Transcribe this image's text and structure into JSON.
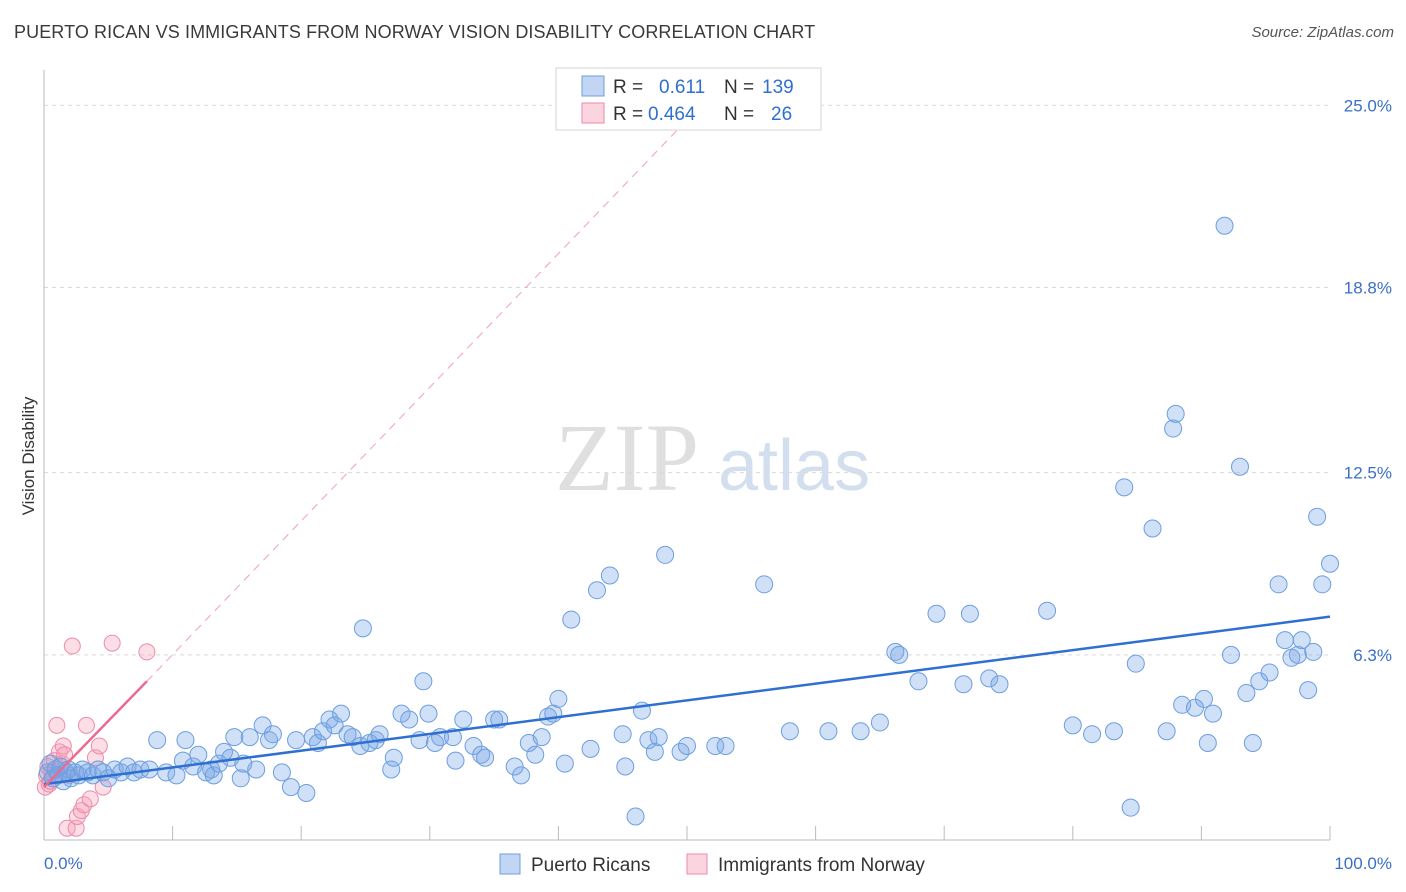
{
  "header": {
    "title": "PUERTO RICAN VS IMMIGRANTS FROM NORWAY VISION DISABILITY CORRELATION CHART",
    "source": "Source: ZipAtlas.com"
  },
  "watermark": {
    "zip": "ZIP",
    "atlas": "atlas"
  },
  "colors": {
    "blue": "#6d9ee0",
    "blue_fill": "rgba(120,165,230,0.35)",
    "blue_line": "#2f6fd0",
    "pink": "#ee8aa8",
    "pink_fill": "rgba(245,160,185,0.35)",
    "pink_line": "#e96b92",
    "tick_text": "#3a6fc4",
    "grid": "#d9d9d9"
  },
  "legend": {
    "rows": [
      {
        "r_label": "R =",
        "r_value": "0.611",
        "n_label": "N =",
        "n_value": "139"
      },
      {
        "r_label": "R =",
        "r_value": "0.464",
        "n_label": "N =",
        "n_value": "26"
      }
    ]
  },
  "chart_data": {
    "type": "scatter",
    "title": "PUERTO RICAN VS IMMIGRANTS FROM NORWAY VISION DISABILITY CORRELATION CHART",
    "xlabel": "",
    "ylabel": "Vision Disability",
    "xlim": [
      0,
      100
    ],
    "ylim": [
      0,
      26.2
    ],
    "x_tick_labels": [
      "0.0%",
      "100.0%"
    ],
    "y_ticks": [
      6.3,
      12.5,
      18.8,
      25.0
    ],
    "y_tick_labels": [
      "6.3%",
      "12.5%",
      "18.8%",
      "25.0%"
    ],
    "grid": true,
    "legend_position": "top-center",
    "series": [
      {
        "name": "Puerto Ricans",
        "R": 0.611,
        "N": 139,
        "trend": {
          "x": [
            0,
            100
          ],
          "y": [
            1.9,
            7.6
          ]
        },
        "points": [
          [
            0.3,
            2.3
          ],
          [
            0.5,
            2.6
          ],
          [
            0.7,
            2.1
          ],
          [
            0.9,
            2.4
          ],
          [
            1.1,
            2.2
          ],
          [
            1.3,
            2.5
          ],
          [
            1.5,
            2.0
          ],
          [
            1.7,
            2.3
          ],
          [
            1.9,
            2.4
          ],
          [
            2.1,
            2.1
          ],
          [
            2.4,
            2.3
          ],
          [
            2.7,
            2.2
          ],
          [
            3.0,
            2.4
          ],
          [
            3.4,
            2.3
          ],
          [
            3.8,
            2.2
          ],
          [
            4.2,
            2.4
          ],
          [
            4.6,
            2.3
          ],
          [
            5.0,
            2.1
          ],
          [
            5.5,
            2.4
          ],
          [
            6.0,
            2.3
          ],
          [
            6.5,
            2.5
          ],
          [
            7.0,
            2.3
          ],
          [
            7.5,
            2.4
          ],
          [
            8.2,
            2.4
          ],
          [
            8.8,
            3.4
          ],
          [
            9.5,
            2.3
          ],
          [
            10.3,
            2.2
          ],
          [
            10.8,
            2.7
          ],
          [
            11.0,
            3.4
          ],
          [
            11.6,
            2.5
          ],
          [
            12.0,
            2.9
          ],
          [
            12.6,
            2.3
          ],
          [
            13.0,
            2.4
          ],
          [
            13.2,
            2.2
          ],
          [
            13.6,
            2.6
          ],
          [
            14.0,
            3.0
          ],
          [
            14.5,
            2.8
          ],
          [
            14.8,
            3.5
          ],
          [
            15.3,
            2.1
          ],
          [
            15.5,
            2.6
          ],
          [
            16.0,
            3.5
          ],
          [
            16.5,
            2.4
          ],
          [
            17.0,
            3.9
          ],
          [
            17.5,
            3.4
          ],
          [
            17.8,
            3.6
          ],
          [
            18.5,
            2.3
          ],
          [
            19.2,
            1.8
          ],
          [
            19.6,
            3.4
          ],
          [
            20.4,
            1.6
          ],
          [
            20.9,
            3.5
          ],
          [
            21.3,
            3.3
          ],
          [
            21.7,
            3.7
          ],
          [
            22.2,
            4.1
          ],
          [
            22.6,
            3.9
          ],
          [
            23.1,
            4.3
          ],
          [
            23.6,
            3.6
          ],
          [
            24.0,
            3.5
          ],
          [
            24.6,
            3.2
          ],
          [
            24.8,
            7.2
          ],
          [
            25.3,
            3.3
          ],
          [
            25.8,
            3.4
          ],
          [
            26.1,
            3.6
          ],
          [
            27.0,
            2.4
          ],
          [
            27.2,
            2.8
          ],
          [
            27.8,
            4.3
          ],
          [
            28.4,
            4.1
          ],
          [
            29.2,
            3.4
          ],
          [
            29.5,
            5.4
          ],
          [
            29.9,
            4.3
          ],
          [
            30.4,
            3.3
          ],
          [
            30.8,
            3.5
          ],
          [
            31.8,
            3.5
          ],
          [
            32.0,
            2.7
          ],
          [
            32.6,
            4.1
          ],
          [
            33.4,
            3.2
          ],
          [
            34.0,
            2.9
          ],
          [
            34.3,
            2.8
          ],
          [
            35.0,
            4.1
          ],
          [
            35.4,
            4.1
          ],
          [
            36.6,
            2.5
          ],
          [
            37.1,
            2.2
          ],
          [
            37.7,
            3.3
          ],
          [
            38.2,
            2.9
          ],
          [
            38.7,
            3.5
          ],
          [
            39.2,
            4.2
          ],
          [
            39.6,
            4.3
          ],
          [
            40.0,
            4.8
          ],
          [
            40.5,
            2.6
          ],
          [
            41.0,
            7.5
          ],
          [
            42.5,
            3.1
          ],
          [
            43.0,
            8.5
          ],
          [
            44.0,
            9.0
          ],
          [
            45.0,
            3.6
          ],
          [
            45.2,
            2.5
          ],
          [
            46.0,
            0.8
          ],
          [
            46.5,
            4.4
          ],
          [
            47.0,
            3.4
          ],
          [
            47.5,
            3.0
          ],
          [
            47.8,
            3.5
          ],
          [
            48.3,
            9.7
          ],
          [
            49.5,
            3.0
          ],
          [
            50.0,
            3.2
          ],
          [
            52.2,
            3.2
          ],
          [
            53.0,
            3.2
          ],
          [
            56.0,
            8.7
          ],
          [
            58.0,
            3.7
          ],
          [
            61.0,
            3.7
          ],
          [
            63.5,
            3.7
          ],
          [
            65.0,
            4.0
          ],
          [
            66.2,
            6.4
          ],
          [
            66.5,
            6.3
          ],
          [
            68.0,
            5.4
          ],
          [
            69.4,
            7.7
          ],
          [
            71.5,
            5.3
          ],
          [
            72.0,
            7.7
          ],
          [
            73.5,
            5.5
          ],
          [
            74.3,
            5.3
          ],
          [
            78.0,
            7.8
          ],
          [
            80.0,
            3.9
          ],
          [
            81.5,
            3.6
          ],
          [
            83.2,
            3.7
          ],
          [
            84.0,
            12.0
          ],
          [
            84.5,
            1.1
          ],
          [
            84.9,
            6.0
          ],
          [
            86.2,
            10.6
          ],
          [
            87.3,
            3.7
          ],
          [
            87.8,
            14.0
          ],
          [
            88.0,
            14.5
          ],
          [
            88.5,
            4.6
          ],
          [
            89.5,
            4.5
          ],
          [
            90.2,
            4.8
          ],
          [
            90.5,
            3.3
          ],
          [
            90.9,
            4.3
          ],
          [
            91.8,
            20.9
          ],
          [
            92.3,
            6.3
          ],
          [
            93.0,
            12.7
          ],
          [
            93.5,
            5.0
          ],
          [
            94.0,
            3.3
          ],
          [
            94.5,
            5.4
          ],
          [
            95.3,
            5.7
          ],
          [
            96.0,
            8.7
          ],
          [
            96.5,
            6.8
          ],
          [
            97.0,
            6.2
          ],
          [
            97.5,
            6.3
          ],
          [
            97.8,
            6.8
          ],
          [
            98.3,
            5.1
          ],
          [
            98.7,
            6.4
          ],
          [
            99.0,
            11.0
          ],
          [
            99.4,
            8.7
          ],
          [
            100.0,
            9.4
          ]
        ]
      },
      {
        "name": "Immigrants from Norway",
        "R": 0.464,
        "N": 26,
        "trend": {
          "x": [
            0,
            8
          ],
          "y": [
            1.8,
            5.4
          ]
        },
        "trend_extended": {
          "x": [
            8,
            50
          ],
          "y": [
            5.4,
            24.5
          ]
        },
        "points": [
          [
            0.1,
            1.8
          ],
          [
            0.2,
            2.2
          ],
          [
            0.3,
            2.5
          ],
          [
            0.4,
            1.9
          ],
          [
            0.5,
            2.0
          ],
          [
            0.6,
            2.3
          ],
          [
            0.8,
            2.7
          ],
          [
            1.0,
            3.9
          ],
          [
            1.2,
            3.0
          ],
          [
            1.4,
            2.6
          ],
          [
            1.5,
            3.2
          ],
          [
            1.6,
            2.9
          ],
          [
            1.8,
            0.4
          ],
          [
            2.0,
            2.2
          ],
          [
            2.2,
            6.6
          ],
          [
            2.5,
            0.4
          ],
          [
            2.6,
            0.8
          ],
          [
            2.9,
            1.0
          ],
          [
            3.1,
            1.2
          ],
          [
            3.3,
            3.9
          ],
          [
            3.6,
            1.4
          ],
          [
            4.0,
            2.8
          ],
          [
            4.3,
            3.2
          ],
          [
            4.6,
            1.8
          ],
          [
            5.3,
            6.7
          ],
          [
            8.0,
            6.4
          ]
        ]
      }
    ]
  },
  "bottom_legend": {
    "items": [
      "Puerto Ricans",
      "Immigrants from Norway"
    ]
  }
}
